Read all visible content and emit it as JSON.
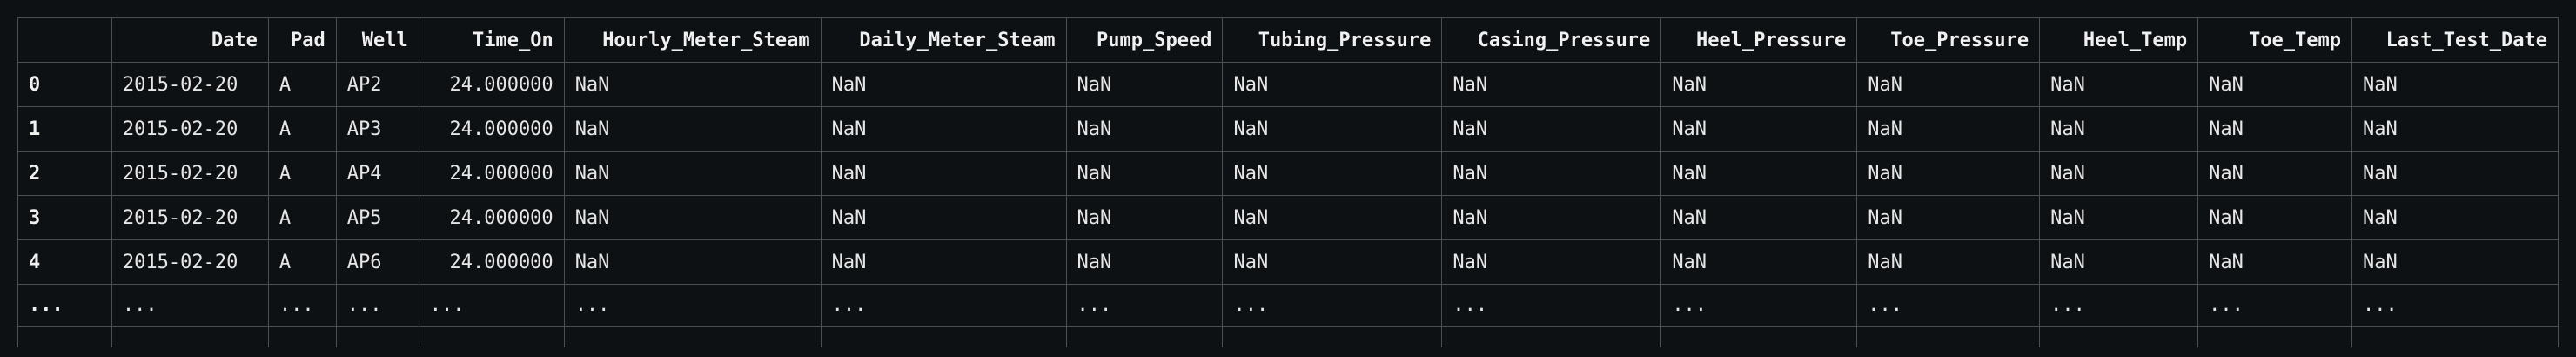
{
  "dataframe": {
    "index_header": "",
    "columns": [
      "Date",
      "Pad",
      "Well",
      "Time_On",
      "Hourly_Meter_Steam",
      "Daily_Meter_Steam",
      "Pump_Speed",
      "Tubing_Pressure",
      "Casing_Pressure",
      "Heel_Pressure",
      "Toe_Pressure",
      "Heel_Temp",
      "Toe_Temp",
      "Last_Test_Date"
    ],
    "rows": [
      {
        "index": "0",
        "cells": [
          "2015-02-20",
          "A",
          "AP2",
          "24.000000",
          "NaN",
          "NaN",
          "NaN",
          "NaN",
          "NaN",
          "NaN",
          "NaN",
          "NaN",
          "NaN",
          "NaN"
        ]
      },
      {
        "index": "1",
        "cells": [
          "2015-02-20",
          "A",
          "AP3",
          "24.000000",
          "NaN",
          "NaN",
          "NaN",
          "NaN",
          "NaN",
          "NaN",
          "NaN",
          "NaN",
          "NaN",
          "NaN"
        ]
      },
      {
        "index": "2",
        "cells": [
          "2015-02-20",
          "A",
          "AP4",
          "24.000000",
          "NaN",
          "NaN",
          "NaN",
          "NaN",
          "NaN",
          "NaN",
          "NaN",
          "NaN",
          "NaN",
          "NaN"
        ]
      },
      {
        "index": "3",
        "cells": [
          "2015-02-20",
          "A",
          "AP5",
          "24.000000",
          "NaN",
          "NaN",
          "NaN",
          "NaN",
          "NaN",
          "NaN",
          "NaN",
          "NaN",
          "NaN",
          "NaN"
        ]
      },
      {
        "index": "4",
        "cells": [
          "2015-02-20",
          "A",
          "AP6",
          "24.000000",
          "NaN",
          "NaN",
          "NaN",
          "NaN",
          "NaN",
          "NaN",
          "NaN",
          "NaN",
          "NaN",
          "NaN"
        ]
      },
      {
        "index": "...",
        "cells": [
          "...",
          "...",
          "...",
          "...",
          "...",
          "...",
          "...",
          "...",
          "...",
          "...",
          "...",
          "...",
          "...",
          "..."
        ]
      }
    ]
  },
  "colors": {
    "background": "#0e1113",
    "text": "#e6e6e6",
    "grid": "#4a4f53"
  }
}
